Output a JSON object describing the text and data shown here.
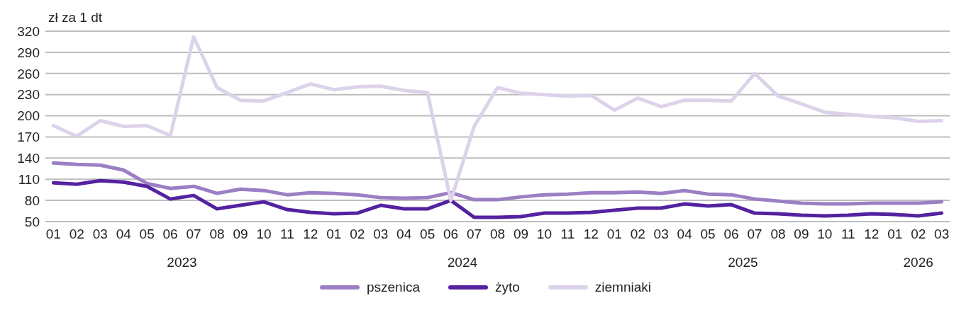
{
  "chart_data": {
    "type": "line",
    "ylabel": "zł za 1 dt",
    "categories": [
      "01",
      "02",
      "03",
      "04",
      "05",
      "06",
      "07",
      "08",
      "09",
      "10",
      "11",
      "12",
      "01",
      "02",
      "03",
      "04",
      "05",
      "06",
      "07",
      "08",
      "09",
      "10",
      "11",
      "12",
      "01",
      "02",
      "03",
      "04",
      "05",
      "06",
      "07",
      "08",
      "09",
      "10",
      "11",
      "12",
      "01",
      "02",
      "03"
    ],
    "annotations": [
      "2023",
      "2024",
      "2025",
      "2026"
    ],
    "series": [
      {
        "name": "pszenica",
        "color": "#9b7fc4",
        "values": [
          133,
          131,
          130,
          123,
          104,
          97,
          100,
          90,
          96,
          94,
          88,
          91,
          90,
          88,
          84,
          83,
          84,
          91,
          81,
          81,
          85,
          88,
          89,
          91,
          91,
          92,
          90,
          94,
          89,
          88,
          82,
          79,
          76,
          75,
          75,
          76,
          76,
          76,
          78
        ]
      },
      {
        "name": "żyto",
        "color": "#5422a0",
        "values": [
          105,
          103,
          108,
          106,
          100,
          82,
          87,
          68,
          73,
          78,
          67,
          63,
          61,
          62,
          73,
          68,
          68,
          80,
          56,
          56,
          57,
          62,
          62,
          63,
          66,
          69,
          69,
          75,
          72,
          74,
          62,
          61,
          59,
          58,
          59,
          61,
          60,
          58,
          62
        ]
      },
      {
        "name": "ziemniaki",
        "color": "#dcd3ea",
        "values": [
          186,
          171,
          193,
          185,
          186,
          172,
          312,
          240,
          222,
          221,
          233,
          245,
          237,
          241,
          242,
          236,
          233,
          80,
          185,
          240,
          232,
          230,
          228,
          229,
          208,
          225,
          213,
          222,
          222,
          221,
          260,
          228,
          217,
          205,
          202,
          199,
          197,
          192,
          193
        ]
      }
    ],
    "ylim": [
      50,
      320
    ],
    "yticks": [
      50,
      80,
      110,
      140,
      170,
      200,
      230,
      260,
      290,
      320
    ],
    "grid": "y",
    "legend": "bottom",
    "marker": "none",
    "line_style": "solid"
  }
}
